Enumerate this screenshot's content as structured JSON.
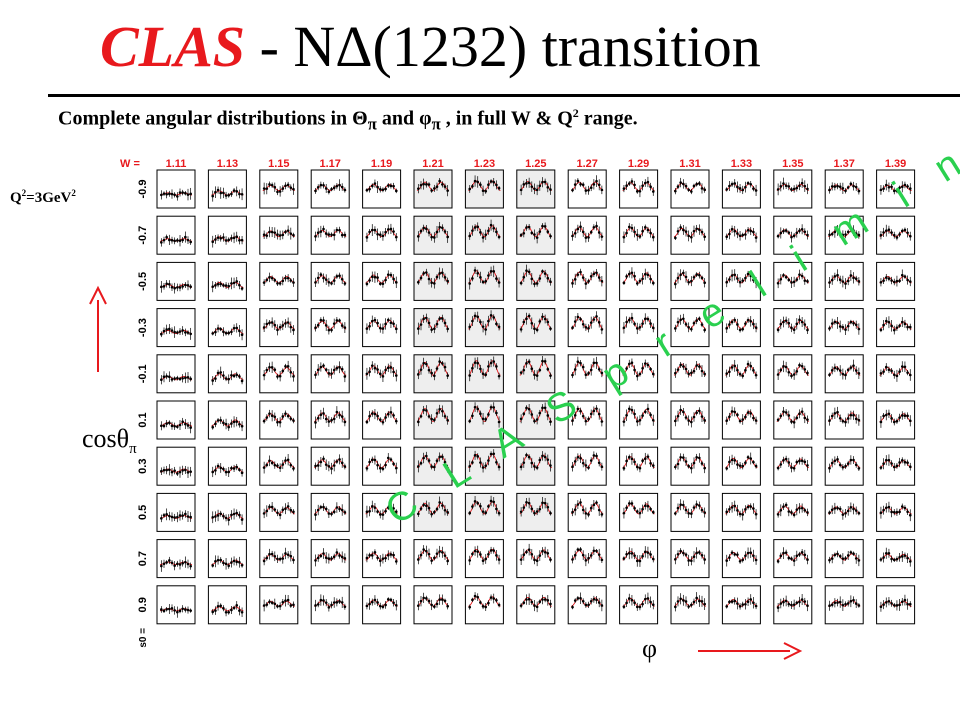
{
  "title": {
    "prefix": "CLAS",
    "rest": " - NΔ(1232) transition"
  },
  "subtitle": {
    "part1": "Complete angular distributions in Θ",
    "pi1": "π",
    "part2": " and φ",
    "pi2": "π",
    "part3": " , in full W & Q",
    "sup": "2",
    "part4": " range."
  },
  "q2_label": {
    "a": "Q",
    "sup": "2",
    "b": "=3GeV",
    "sup2": "2"
  },
  "y_axis_label": {
    "main": "cosθ",
    "sub": "π"
  },
  "x_axis_label": "φ",
  "watermark": "C L A S   p r e l i m i n a r y",
  "colors": {
    "title_accent": "#e8191d",
    "arrow": "#e8191d",
    "fit_curve": "#e8191d",
    "watermark": "#2ad04f",
    "shaded_panel": "#eeeeee"
  },
  "chart_data": {
    "type": "scatter",
    "description_grid": "small-multiples: rows = cosθπ bins, columns = W bins",
    "w_prefix": "W =",
    "w_values": [
      "1.11",
      "1.13",
      "1.15",
      "1.17",
      "1.19",
      "1.21",
      "1.23",
      "1.25",
      "1.27",
      "1.29",
      "1.31",
      "1.33",
      "1.35",
      "1.37",
      "1.39"
    ],
    "cos_values": [
      "-0.9",
      "-0.7",
      "-0.5",
      "-0.3",
      "-0.1",
      "0.1",
      "0.3",
      "0.5",
      "0.7",
      "0.9"
    ],
    "last_row_prefix": "s0 =",
    "shaded_columns": [
      "1.21",
      "1.23",
      "1.25"
    ],
    "shape_amplitude_by_column": [
      0.2,
      0.35,
      0.45,
      0.5,
      0.55,
      0.75,
      0.85,
      0.8,
      0.75,
      0.7,
      0.65,
      0.6,
      0.55,
      0.5,
      0.45
    ]
  }
}
